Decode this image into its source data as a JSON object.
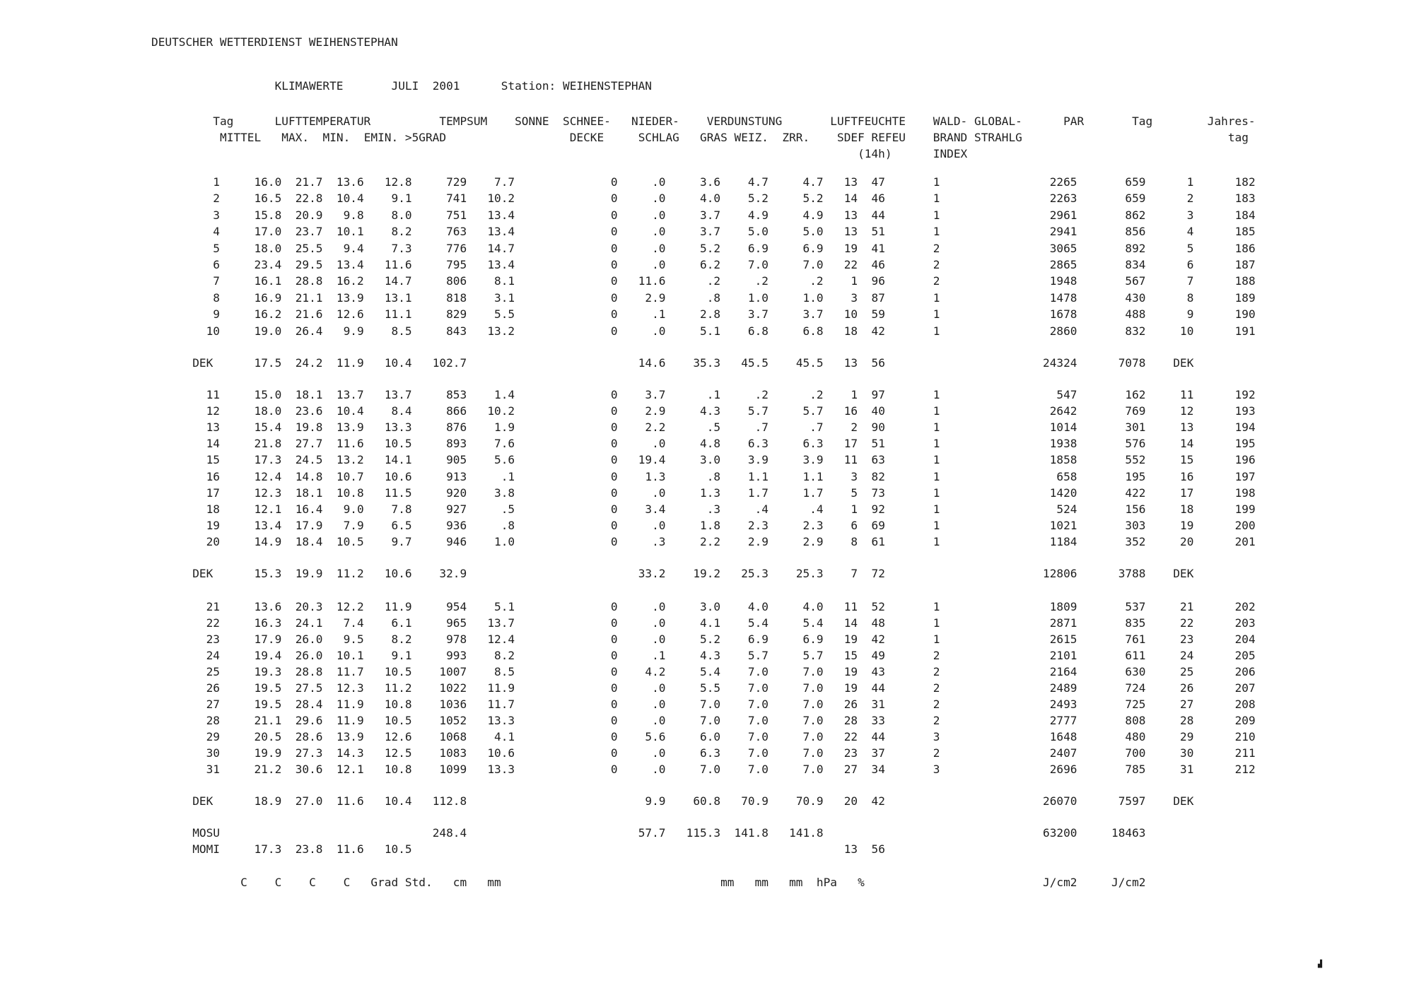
{
  "report": {
    "agency": "DEUTSCHER WETTERDIENST WEIHENSTEPHAN",
    "title_line": {
      "title": "KLIMAWERTE",
      "month": "JULI",
      "year": "2001",
      "station_label": "Station:",
      "station": "WEIHENSTEPHAN"
    },
    "columns": {
      "tag": "Tag",
      "lufttemperatur": "LUFTTEMPERATUR",
      "mittel": "MITTEL",
      "max": "MAX.",
      "min": "MIN.",
      "emin": "EMIN.",
      "tempsum": "TEMPSUM",
      "tempsum2": ">5GRAD",
      "sonne": "SONNE",
      "schnee": "SCHNEE-",
      "schnee2": "DECKE",
      "nieder": "NIEDER-",
      "nieder2": "SCHLAG",
      "verdunstung": "VERDUNSTUNG",
      "gras": "GRAS",
      "weiz": "WEIZ.",
      "zrr": "ZRR.",
      "luftfeuchte": "LUFTFEUCHTE",
      "sdef": "SDEF",
      "refeu": "REFEU",
      "luftfeuchte3": "(14h)",
      "wald": "WALD-",
      "wald2": "BRAND",
      "wald3": "INDEX",
      "global": "GLOBAL-",
      "global2": "STRAHLG",
      "par": "PAR",
      "tag2": "Tag",
      "jahres": "Jahres-",
      "jahres2": "tag"
    },
    "units": [
      "C",
      "C",
      "C",
      "C",
      "Grad",
      "Std.",
      "cm",
      "mm",
      "mm",
      "mm",
      "mm",
      "hPa",
      "%",
      "J/cm2",
      "J/cm2"
    ],
    "artifact_mark": "▟"
  },
  "table": {
    "field_order": [
      "tag",
      "mittel",
      "max",
      "min",
      "emin",
      "tempsum_5grad",
      "sonne",
      "schneedecke",
      "niederschlag",
      "verdunstung_gras",
      "verdunstung_weiz",
      "verdunstung_zrr",
      "sdef",
      "refeu",
      "waldbrand_index",
      "globalstrahlung",
      "par",
      "tag_repeat",
      "jahrestag"
    ],
    "days_1_10": [
      [
        "1",
        "16.0",
        "21.7",
        "13.6",
        "12.8",
        "729",
        "7.7",
        "0",
        ".0",
        "3.6",
        "4.7",
        "4.7",
        "13",
        "47",
        "1",
        "2265",
        "659",
        "1",
        "182"
      ],
      [
        "2",
        "16.5",
        "22.8",
        "10.4",
        "9.1",
        "741",
        "10.2",
        "0",
        ".0",
        "4.0",
        "5.2",
        "5.2",
        "14",
        "46",
        "1",
        "2263",
        "659",
        "2",
        "183"
      ],
      [
        "3",
        "15.8",
        "20.9",
        "9.8",
        "8.0",
        "751",
        "13.4",
        "0",
        ".0",
        "3.7",
        "4.9",
        "4.9",
        "13",
        "44",
        "1",
        "2961",
        "862",
        "3",
        "184"
      ],
      [
        "4",
        "17.0",
        "23.7",
        "10.1",
        "8.2",
        "763",
        "13.4",
        "0",
        ".0",
        "3.7",
        "5.0",
        "5.0",
        "13",
        "51",
        "1",
        "2941",
        "856",
        "4",
        "185"
      ],
      [
        "5",
        "18.0",
        "25.5",
        "9.4",
        "7.3",
        "776",
        "14.7",
        "0",
        ".0",
        "5.2",
        "6.9",
        "6.9",
        "19",
        "41",
        "2",
        "3065",
        "892",
        "5",
        "186"
      ],
      [
        "6",
        "23.4",
        "29.5",
        "13.4",
        "11.6",
        "795",
        "13.4",
        "0",
        ".0",
        "6.2",
        "7.0",
        "7.0",
        "22",
        "46",
        "2",
        "2865",
        "834",
        "6",
        "187"
      ],
      [
        "7",
        "16.1",
        "28.8",
        "16.2",
        "14.7",
        "806",
        "8.1",
        "0",
        "11.6",
        ".2",
        ".2",
        ".2",
        "1",
        "96",
        "2",
        "1948",
        "567",
        "7",
        "188"
      ],
      [
        "8",
        "16.9",
        "21.1",
        "13.9",
        "13.1",
        "818",
        "3.1",
        "0",
        "2.9",
        ".8",
        "1.0",
        "1.0",
        "3",
        "87",
        "1",
        "1478",
        "430",
        "8",
        "189"
      ],
      [
        "9",
        "16.2",
        "21.6",
        "12.6",
        "11.1",
        "829",
        "5.5",
        "0",
        ".1",
        "2.8",
        "3.7",
        "3.7",
        "10",
        "59",
        "1",
        "1678",
        "488",
        "9",
        "190"
      ],
      [
        "10",
        "19.0",
        "26.4",
        "9.9",
        "8.5",
        "843",
        "13.2",
        "0",
        ".0",
        "5.1",
        "6.8",
        "6.8",
        "18",
        "42",
        "1",
        "2860",
        "832",
        "10",
        "191"
      ]
    ],
    "dek1": [
      "DEK",
      "17.5",
      "24.2",
      "11.9",
      "10.4",
      "102.7",
      "",
      "",
      "14.6",
      "35.3",
      "45.5",
      "45.5",
      "13",
      "56",
      "",
      "24324",
      "7078",
      "DEK",
      ""
    ],
    "days_11_20": [
      [
        "11",
        "15.0",
        "18.1",
        "13.7",
        "13.7",
        "853",
        "1.4",
        "0",
        "3.7",
        ".1",
        ".2",
        ".2",
        "1",
        "97",
        "1",
        "547",
        "162",
        "11",
        "192"
      ],
      [
        "12",
        "18.0",
        "23.6",
        "10.4",
        "8.4",
        "866",
        "10.2",
        "0",
        "2.9",
        "4.3",
        "5.7",
        "5.7",
        "16",
        "40",
        "1",
        "2642",
        "769",
        "12",
        "193"
      ],
      [
        "13",
        "15.4",
        "19.8",
        "13.9",
        "13.3",
        "876",
        "1.9",
        "0",
        "2.2",
        ".5",
        ".7",
        ".7",
        "2",
        "90",
        "1",
        "1014",
        "301",
        "13",
        "194"
      ],
      [
        "14",
        "21.8",
        "27.7",
        "11.6",
        "10.5",
        "893",
        "7.6",
        "0",
        ".0",
        "4.8",
        "6.3",
        "6.3",
        "17",
        "51",
        "1",
        "1938",
        "576",
        "14",
        "195"
      ],
      [
        "15",
        "17.3",
        "24.5",
        "13.2",
        "14.1",
        "905",
        "5.6",
        "0",
        "19.4",
        "3.0",
        "3.9",
        "3.9",
        "11",
        "63",
        "1",
        "1858",
        "552",
        "15",
        "196"
      ],
      [
        "16",
        "12.4",
        "14.8",
        "10.7",
        "10.6",
        "913",
        ".1",
        "0",
        "1.3",
        ".8",
        "1.1",
        "1.1",
        "3",
        "82",
        "1",
        "658",
        "195",
        "16",
        "197"
      ],
      [
        "17",
        "12.3",
        "18.1",
        "10.8",
        "11.5",
        "920",
        "3.8",
        "0",
        ".0",
        "1.3",
        "1.7",
        "1.7",
        "5",
        "73",
        "1",
        "1420",
        "422",
        "17",
        "198"
      ],
      [
        "18",
        "12.1",
        "16.4",
        "9.0",
        "7.8",
        "927",
        ".5",
        "0",
        "3.4",
        ".3",
        ".4",
        ".4",
        "1",
        "92",
        "1",
        "524",
        "156",
        "18",
        "199"
      ],
      [
        "19",
        "13.4",
        "17.9",
        "7.9",
        "6.5",
        "936",
        ".8",
        "0",
        ".0",
        "1.8",
        "2.3",
        "2.3",
        "6",
        "69",
        "1",
        "1021",
        "303",
        "19",
        "200"
      ],
      [
        "20",
        "14.9",
        "18.4",
        "10.5",
        "9.7",
        "946",
        "1.0",
        "0",
        ".3",
        "2.2",
        "2.9",
        "2.9",
        "8",
        "61",
        "1",
        "1184",
        "352",
        "20",
        "201"
      ]
    ],
    "dek2": [
      "DEK",
      "15.3",
      "19.9",
      "11.2",
      "10.6",
      "32.9",
      "",
      "",
      "33.2",
      "19.2",
      "25.3",
      "25.3",
      "7",
      "72",
      "",
      "12806",
      "3788",
      "DEK",
      ""
    ],
    "days_21_31": [
      [
        "21",
        "13.6",
        "20.3",
        "12.2",
        "11.9",
        "954",
        "5.1",
        "0",
        ".0",
        "3.0",
        "4.0",
        "4.0",
        "11",
        "52",
        "1",
        "1809",
        "537",
        "21",
        "202"
      ],
      [
        "22",
        "16.3",
        "24.1",
        "7.4",
        "6.1",
        "965",
        "13.7",
        "0",
        ".0",
        "4.1",
        "5.4",
        "5.4",
        "14",
        "48",
        "1",
        "2871",
        "835",
        "22",
        "203"
      ],
      [
        "23",
        "17.9",
        "26.0",
        "9.5",
        "8.2",
        "978",
        "12.4",
        "0",
        ".0",
        "5.2",
        "6.9",
        "6.9",
        "19",
        "42",
        "1",
        "2615",
        "761",
        "23",
        "204"
      ],
      [
        "24",
        "19.4",
        "26.0",
        "10.1",
        "9.1",
        "993",
        "8.2",
        "0",
        ".1",
        "4.3",
        "5.7",
        "5.7",
        "15",
        "49",
        "2",
        "2101",
        "611",
        "24",
        "205"
      ],
      [
        "25",
        "19.3",
        "28.8",
        "11.7",
        "10.5",
        "1007",
        "8.5",
        "0",
        "4.2",
        "5.4",
        "7.0",
        "7.0",
        "19",
        "43",
        "2",
        "2164",
        "630",
        "25",
        "206"
      ],
      [
        "26",
        "19.5",
        "27.5",
        "12.3",
        "11.2",
        "1022",
        "11.9",
        "0",
        ".0",
        "5.5",
        "7.0",
        "7.0",
        "19",
        "44",
        "2",
        "2489",
        "724",
        "26",
        "207"
      ],
      [
        "27",
        "19.5",
        "28.4",
        "11.9",
        "10.8",
        "1036",
        "11.7",
        "0",
        ".0",
        "7.0",
        "7.0",
        "7.0",
        "26",
        "31",
        "2",
        "2493",
        "725",
        "27",
        "208"
      ],
      [
        "28",
        "21.1",
        "29.6",
        "11.9",
        "10.5",
        "1052",
        "13.3",
        "0",
        ".0",
        "7.0",
        "7.0",
        "7.0",
        "28",
        "33",
        "2",
        "2777",
        "808",
        "28",
        "209"
      ],
      [
        "29",
        "20.5",
        "28.6",
        "13.9",
        "12.6",
        "1068",
        "4.1",
        "0",
        "5.6",
        "6.0",
        "7.0",
        "7.0",
        "22",
        "44",
        "3",
        "1648",
        "480",
        "29",
        "210"
      ],
      [
        "30",
        "19.9",
        "27.3",
        "14.3",
        "12.5",
        "1083",
        "10.6",
        "0",
        ".0",
        "6.3",
        "7.0",
        "7.0",
        "23",
        "37",
        "2",
        "2407",
        "700",
        "30",
        "211"
      ],
      [
        "31",
        "21.2",
        "30.6",
        "12.1",
        "10.8",
        "1099",
        "13.3",
        "0",
        ".0",
        "7.0",
        "7.0",
        "7.0",
        "27",
        "34",
        "3",
        "2696",
        "785",
        "31",
        "212"
      ]
    ],
    "dek3": [
      "DEK",
      "18.9",
      "27.0",
      "11.6",
      "10.4",
      "112.8",
      "",
      "",
      "9.9",
      "60.8",
      "70.9",
      "70.9",
      "20",
      "42",
      "",
      "26070",
      "7597",
      "DEK",
      ""
    ],
    "mosu": [
      "MOSU",
      "",
      "",
      "",
      "",
      "248.4",
      "",
      "",
      "57.7",
      "115.3",
      "141.8",
      "141.8",
      "",
      "",
      "",
      "63200",
      "18463",
      "",
      ""
    ],
    "momi": [
      "MOMI",
      "17.3",
      "23.8",
      "11.6",
      "10.5",
      "",
      "",
      "",
      "",
      "",
      "",
      "",
      "13",
      "56",
      "",
      "",
      "",
      "",
      ""
    ]
  }
}
